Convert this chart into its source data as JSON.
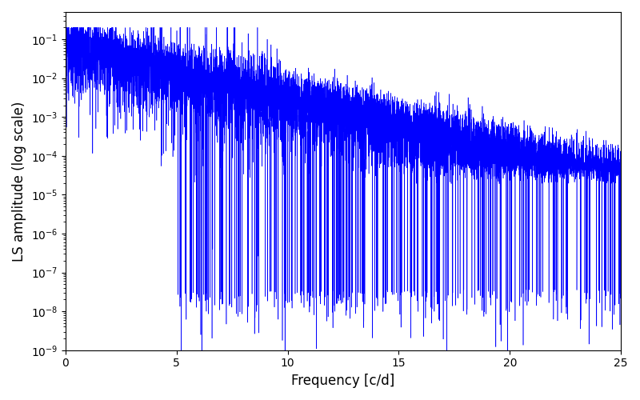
{
  "title": "",
  "xlabel": "Frequency [c/d]",
  "ylabel": "LS amplitude (log scale)",
  "xlim": [
    0,
    25
  ],
  "ylim_low": 1e-09,
  "ylim_high": 0.5,
  "line_color": "#0000ff",
  "yscale": "log",
  "xticks": [
    0,
    5,
    10,
    15,
    20,
    25
  ],
  "figsize": [
    8.0,
    5.0
  ],
  "dpi": 100,
  "n_points": 8000,
  "freq_max": 25.0,
  "seed": 137,
  "background_color": "#ffffff"
}
